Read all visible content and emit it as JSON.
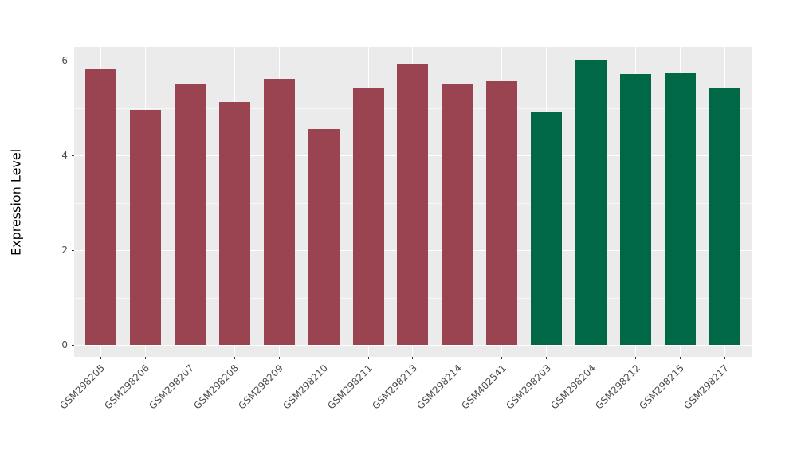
{
  "figure": {
    "background": "#FFFFFF",
    "panel_background": "#EBEBEB",
    "grid_color": "#FFFFFF",
    "tick_color": "#333333",
    "tick_label_color": "#4D4D4D",
    "axis_title_color": "#000000"
  },
  "chart_data": {
    "type": "bar",
    "title": "",
    "xlabel": "",
    "ylabel": "Expression Level",
    "categories": [
      "GSM298205",
      "GSM298206",
      "GSM298207",
      "GSM298208",
      "GSM298209",
      "GSM298210",
      "GSM298211",
      "GSM298213",
      "GSM298214",
      "GSM402541",
      "GSM298203",
      "GSM298204",
      "GSM298212",
      "GSM298215",
      "GSM298217"
    ],
    "values": [
      5.82,
      4.95,
      5.52,
      5.13,
      5.61,
      4.55,
      5.43,
      5.94,
      5.5,
      5.56,
      4.91,
      6.02,
      5.71,
      5.73,
      5.43
    ],
    "groups": [
      0,
      0,
      0,
      0,
      0,
      0,
      0,
      0,
      0,
      0,
      1,
      1,
      1,
      1,
      1
    ],
    "group_colors": [
      "#9B4451",
      "#006847"
    ],
    "y_ticks": [
      0,
      2,
      4,
      6
    ],
    "y_minor_ticks": [
      1,
      3,
      5
    ],
    "ylim": [
      -0.25,
      6.29
    ],
    "grid": "major-and-minor-white-on-gray",
    "legend": "none"
  }
}
